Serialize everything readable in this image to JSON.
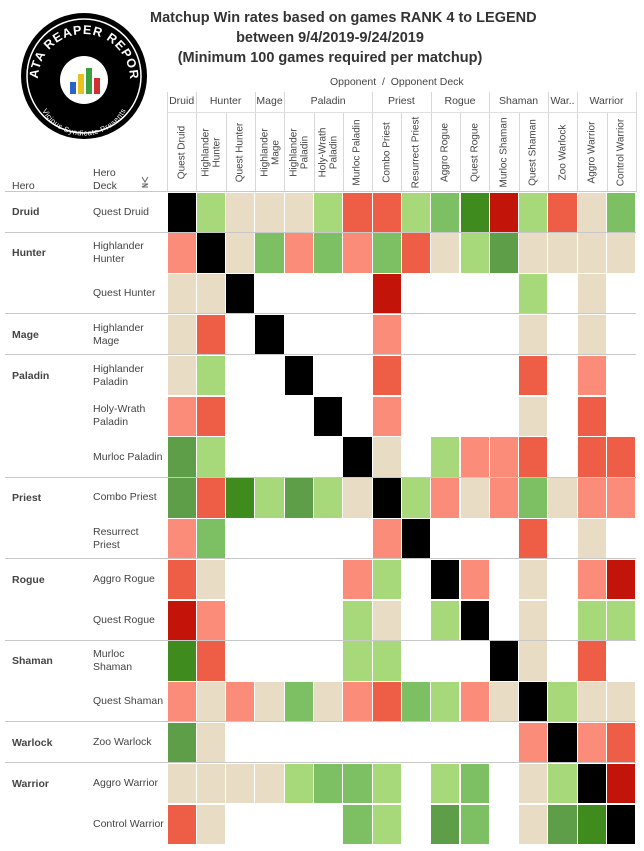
{
  "chart_data": {
    "type": "heatmap",
    "title_lines": [
      "Matchup Win rates based on games RANK 4 to LEGEND",
      "between 9/4/2019-9/24/2019",
      "(Minimum 100 games required per matchup)"
    ],
    "logo": {
      "title": "DATA REAPER REPORT",
      "subtitle": "Vicious Syndicate Presents"
    },
    "column_header": "Opponent  /  Opponent Deck",
    "row_header_hero": "Hero",
    "row_header_deck": "Hero Deck",
    "palette": {
      "k": "#000000",
      "n": "#e8dcc4",
      "lg": "#a7d97b",
      "g": "#7dbf63",
      "mg": "#5e9e49",
      "dg": "#3f8b1d",
      "lr": "#fa8c79",
      "r": "#ee5d46",
      "dr": "#c21409"
    },
    "column_groups": [
      {
        "label": "Druid",
        "decks": [
          "Quest Druid"
        ]
      },
      {
        "label": "Hunter",
        "decks": [
          "Highlander Hunter",
          "Quest Hunter"
        ]
      },
      {
        "label": "Mage",
        "decks": [
          "Highlander Mage"
        ]
      },
      {
        "label": "Paladin",
        "decks": [
          "Highlander Paladin",
          "Holy-Wrath Paladin",
          "Murloc Paladin"
        ]
      },
      {
        "label": "Priest",
        "decks": [
          "Combo Priest",
          "Resurrect Priest"
        ]
      },
      {
        "label": "Rogue",
        "decks": [
          "Aggro Rogue",
          "Quest Rogue"
        ]
      },
      {
        "label": "Shaman",
        "decks": [
          "Murloc Shaman",
          "Quest Shaman"
        ]
      },
      {
        "label": "War..",
        "decks": [
          "Zoo Warlock"
        ]
      },
      {
        "label": "Warrior",
        "decks": [
          "Aggro Warrior",
          "Control Warrior"
        ]
      }
    ],
    "row_groups": [
      {
        "hero": "Druid",
        "decks": [
          {
            "deck": "Quest Druid",
            "cells": [
              "k",
              "lg",
              "n",
              "n",
              "n",
              "lg",
              "r",
              "r",
              "lg",
              "g",
              "dg",
              "dr",
              "lg",
              "r",
              "n",
              "g"
            ]
          }
        ]
      },
      {
        "hero": "Hunter",
        "decks": [
          {
            "deck": "Highlander Hunter",
            "cells": [
              "lr",
              "k",
              "n",
              "g",
              "lr",
              "g",
              "lr",
              "g",
              "r",
              "n",
              "lg",
              "mg",
              "n",
              "n",
              "n",
              "n"
            ]
          },
          {
            "deck": "Quest Hunter",
            "cells": [
              "n",
              "n",
              "k",
              null,
              null,
              null,
              null,
              "dr",
              null,
              null,
              null,
              null,
              "lg",
              null,
              "n",
              null
            ]
          }
        ]
      },
      {
        "hero": "Mage",
        "decks": [
          {
            "deck": "Highlander Mage",
            "cells": [
              "n",
              "r",
              null,
              "k",
              null,
              null,
              null,
              "lr",
              null,
              null,
              null,
              null,
              "n",
              null,
              "n",
              null
            ]
          }
        ]
      },
      {
        "hero": "Paladin",
        "decks": [
          {
            "deck": "Highlander Paladin",
            "cells": [
              "n",
              "lg",
              null,
              null,
              "k",
              null,
              null,
              "r",
              null,
              null,
              null,
              null,
              "r",
              null,
              "lr",
              null
            ]
          },
          {
            "deck": "Holy-Wrath Paladin",
            "cells": [
              "lr",
              "r",
              null,
              null,
              null,
              "k",
              null,
              "lr",
              null,
              null,
              null,
              null,
              "n",
              null,
              "r",
              null
            ]
          },
          {
            "deck": "Murloc Paladin",
            "cells": [
              "mg",
              "lg",
              null,
              null,
              null,
              null,
              "k",
              "n",
              null,
              "lg",
              "lr",
              "lr",
              "r",
              null,
              "r",
              "r"
            ]
          }
        ]
      },
      {
        "hero": "Priest",
        "decks": [
          {
            "deck": "Combo Priest",
            "cells": [
              "mg",
              "r",
              "dg",
              "lg",
              "mg",
              "lg",
              "n",
              "k",
              "lg",
              "lr",
              "n",
              "lr",
              "g",
              "n",
              "lr",
              "lr"
            ]
          },
          {
            "deck": "Resurrect Priest",
            "cells": [
              "lr",
              "g",
              null,
              null,
              null,
              null,
              null,
              "lr",
              "k",
              null,
              null,
              null,
              "r",
              null,
              "n",
              null
            ]
          }
        ]
      },
      {
        "hero": "Rogue",
        "decks": [
          {
            "deck": "Aggro Rogue",
            "cells": [
              "r",
              "n",
              null,
              null,
              null,
              null,
              "lr",
              "lg",
              null,
              "k",
              "lr",
              null,
              "n",
              null,
              "lr",
              "dr"
            ]
          },
          {
            "deck": "Quest Rogue",
            "cells": [
              "dr",
              "lr",
              null,
              null,
              null,
              null,
              "lg",
              "n",
              null,
              "lg",
              "k",
              null,
              "n",
              null,
              "lg",
              "lg"
            ]
          }
        ]
      },
      {
        "hero": "Shaman",
        "decks": [
          {
            "deck": "Murloc Shaman",
            "cells": [
              "dg",
              "r",
              null,
              null,
              null,
              null,
              "lg",
              "lg",
              null,
              null,
              null,
              "k",
              "n",
              null,
              "r",
              null
            ]
          },
          {
            "deck": "Quest Shaman",
            "cells": [
              "lr",
              "n",
              "lr",
              "n",
              "g",
              "n",
              "lr",
              "r",
              "g",
              "lg",
              "lr",
              "n",
              "k",
              "lg",
              "n",
              "n"
            ]
          }
        ]
      },
      {
        "hero": "Warlock",
        "decks": [
          {
            "deck": "Zoo Warlock",
            "cells": [
              "mg",
              "n",
              null,
              null,
              null,
              null,
              null,
              null,
              null,
              null,
              null,
              null,
              "lr",
              "k",
              "lr",
              "r"
            ]
          }
        ]
      },
      {
        "hero": "Warrior",
        "decks": [
          {
            "deck": "Aggro Warrior",
            "cells": [
              "n",
              "n",
              "n",
              "n",
              "lg",
              "g",
              "g",
              "lg",
              null,
              "lg",
              "g",
              null,
              "n",
              "lg",
              "k",
              "dr"
            ]
          },
          {
            "deck": "Control Warrior",
            "cells": [
              "r",
              "n",
              null,
              null,
              null,
              null,
              "g",
              "lg",
              null,
              "mg",
              "g",
              null,
              "n",
              "mg",
              "dg",
              "k"
            ]
          }
        ]
      }
    ]
  }
}
